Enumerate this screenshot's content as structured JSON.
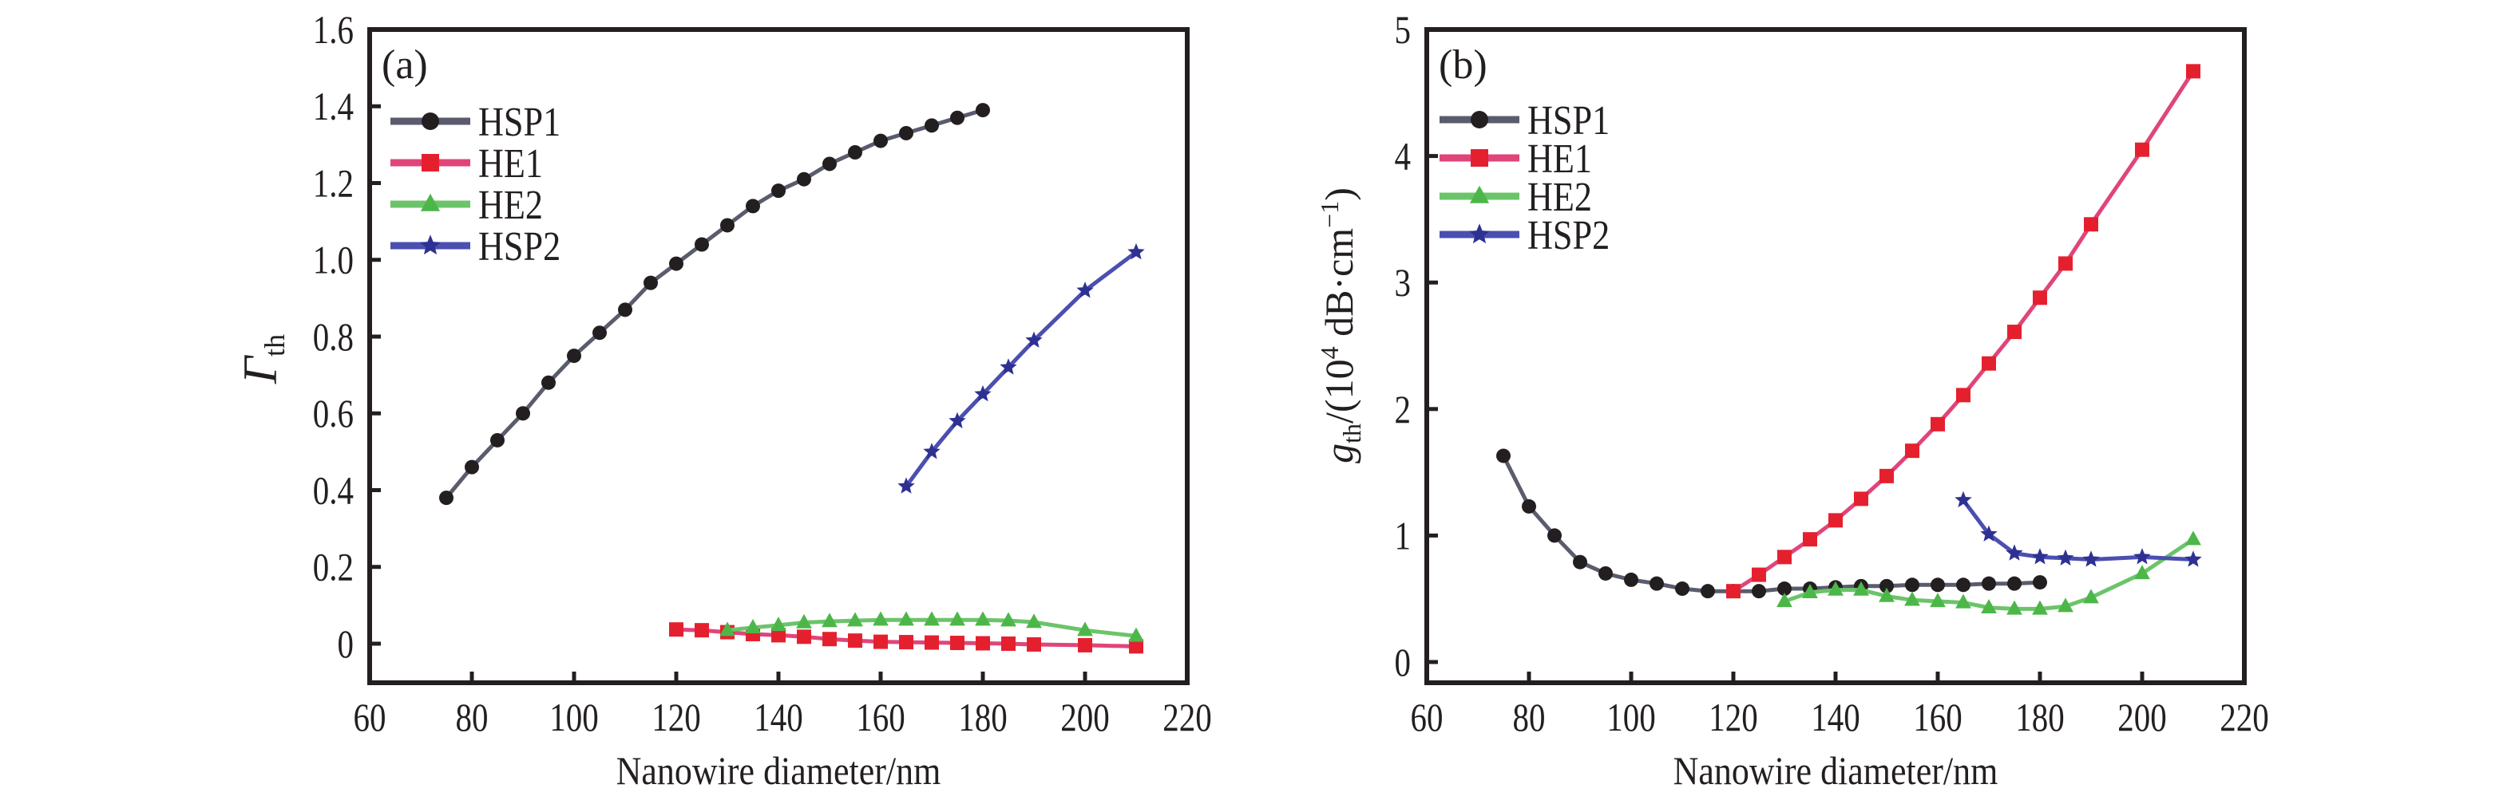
{
  "chart_data": [
    {
      "type": "line",
      "panel_label": "(a)",
      "title": "",
      "xlabel": "Nanowire diameter/nm",
      "ylabel": {
        "main": "Γ",
        "sub": "th"
      },
      "xlim": [
        60,
        220
      ],
      "ylim": [
        -0.1,
        1.6
      ],
      "xticks": [
        60,
        80,
        100,
        120,
        140,
        160,
        180,
        200,
        220
      ],
      "xtick_labels": [
        "60",
        "80",
        "100",
        "120",
        "140",
        "160",
        "180",
        "200",
        "220"
      ],
      "yticks": [
        0,
        0.2,
        0.4,
        0.6,
        0.8,
        1.0,
        1.2,
        1.4,
        1.6
      ],
      "ytick_labels": [
        "0",
        "0.2",
        "0.4",
        "0.6",
        "0.8",
        "1.0",
        "1.2",
        "1.4",
        "1.6"
      ],
      "grid": false,
      "legend_position": "top-left",
      "series": [
        {
          "name": "HSP1",
          "color": "#231f20",
          "line_color": "#5a5c6e",
          "marker": "circle",
          "x": [
            75,
            80,
            85,
            90,
            95,
            100,
            105,
            110,
            115,
            120,
            125,
            130,
            135,
            140,
            145,
            150,
            155,
            160,
            165,
            170,
            175,
            180
          ],
          "y": [
            0.38,
            0.46,
            0.53,
            0.6,
            0.68,
            0.75,
            0.81,
            0.87,
            0.94,
            0.99,
            1.04,
            1.09,
            1.14,
            1.18,
            1.21,
            1.25,
            1.28,
            1.31,
            1.33,
            1.35,
            1.37,
            1.39
          ]
        },
        {
          "name": "HE1",
          "color": "#e5202e",
          "line_color": "#e0457a",
          "marker": "square",
          "x": [
            120,
            125,
            130,
            135,
            140,
            145,
            150,
            155,
            160,
            165,
            170,
            175,
            180,
            185,
            190,
            200,
            210
          ],
          "y": [
            0.037,
            0.035,
            0.03,
            0.025,
            0.022,
            0.018,
            0.012,
            0.008,
            0.005,
            0.004,
            0.003,
            0.002,
            0.001,
            0.0,
            -0.002,
            -0.004,
            -0.007
          ]
        },
        {
          "name": "HE2",
          "color": "#4cb748",
          "line_color": "#6cc46a",
          "marker": "triangle",
          "x": [
            130,
            135,
            140,
            145,
            150,
            155,
            160,
            165,
            170,
            175,
            180,
            185,
            190,
            200,
            210
          ],
          "y": [
            0.035,
            0.042,
            0.048,
            0.055,
            0.058,
            0.06,
            0.062,
            0.062,
            0.062,
            0.062,
            0.062,
            0.06,
            0.056,
            0.035,
            0.02
          ]
        },
        {
          "name": "HSP2",
          "color": "#2e3192",
          "line_color": "#4a4fb0",
          "marker": "star",
          "x": [
            165,
            170,
            175,
            180,
            185,
            190,
            200,
            210
          ],
          "y": [
            0.41,
            0.5,
            0.58,
            0.65,
            0.72,
            0.79,
            0.92,
            1.02
          ]
        }
      ]
    },
    {
      "type": "line",
      "panel_label": "(b)",
      "title": "",
      "xlabel": "Nanowire diameter/nm",
      "ylabel": {
        "main": "g",
        "sub": "th",
        "rest": "/(10",
        "sup": "4",
        "rest2": " dB·cm",
        "sup2": "−1",
        "end": ")"
      },
      "xlim": [
        60,
        220
      ],
      "ylim": [
        -0.16,
        5
      ],
      "xticks": [
        60,
        80,
        100,
        120,
        140,
        160,
        180,
        200,
        220
      ],
      "xtick_labels": [
        "60",
        "80",
        "100",
        "120",
        "140",
        "160",
        "180",
        "200",
        "220"
      ],
      "yticks": [
        0,
        1,
        2,
        3,
        4,
        5
      ],
      "ytick_labels": [
        "0",
        "1",
        "2",
        "3",
        "4",
        "5"
      ],
      "grid": false,
      "legend_position": "top-left",
      "series": [
        {
          "name": "HSP1",
          "color": "#231f20",
          "line_color": "#5a5c6e",
          "marker": "circle",
          "x": [
            75,
            80,
            85,
            90,
            95,
            100,
            105,
            110,
            115,
            120,
            125,
            130,
            135,
            140,
            145,
            150,
            155,
            160,
            165,
            170,
            175,
            180
          ],
          "y": [
            1.63,
            1.23,
            1.0,
            0.79,
            0.7,
            0.65,
            0.62,
            0.58,
            0.56,
            0.56,
            0.56,
            0.58,
            0.58,
            0.59,
            0.6,
            0.6,
            0.61,
            0.61,
            0.61,
            0.62,
            0.62,
            0.63
          ]
        },
        {
          "name": "HE1",
          "color": "#e5202e",
          "line_color": "#e0457a",
          "marker": "square",
          "x": [
            120,
            125,
            130,
            135,
            140,
            145,
            150,
            155,
            160,
            165,
            170,
            175,
            180,
            185,
            190,
            200,
            210
          ],
          "y": [
            0.56,
            0.69,
            0.83,
            0.97,
            1.12,
            1.29,
            1.47,
            1.67,
            1.88,
            2.11,
            2.36,
            2.61,
            2.88,
            3.15,
            3.46,
            4.05,
            4.67
          ]
        },
        {
          "name": "HE2",
          "color": "#4cb748",
          "line_color": "#6cc46a",
          "marker": "triangle",
          "x": [
            130,
            135,
            140,
            145,
            150,
            155,
            160,
            165,
            170,
            175,
            180,
            185,
            190,
            200,
            210
          ],
          "y": [
            0.48,
            0.55,
            0.57,
            0.57,
            0.52,
            0.49,
            0.48,
            0.47,
            0.43,
            0.42,
            0.42,
            0.44,
            0.51,
            0.7,
            0.97
          ]
        },
        {
          "name": "HSP2",
          "color": "#2e3192",
          "line_color": "#4a4fb0",
          "marker": "star",
          "x": [
            165,
            170,
            175,
            180,
            185,
            190,
            200,
            210
          ],
          "y": [
            1.28,
            1.01,
            0.86,
            0.83,
            0.82,
            0.81,
            0.83,
            0.81
          ]
        }
      ]
    }
  ]
}
